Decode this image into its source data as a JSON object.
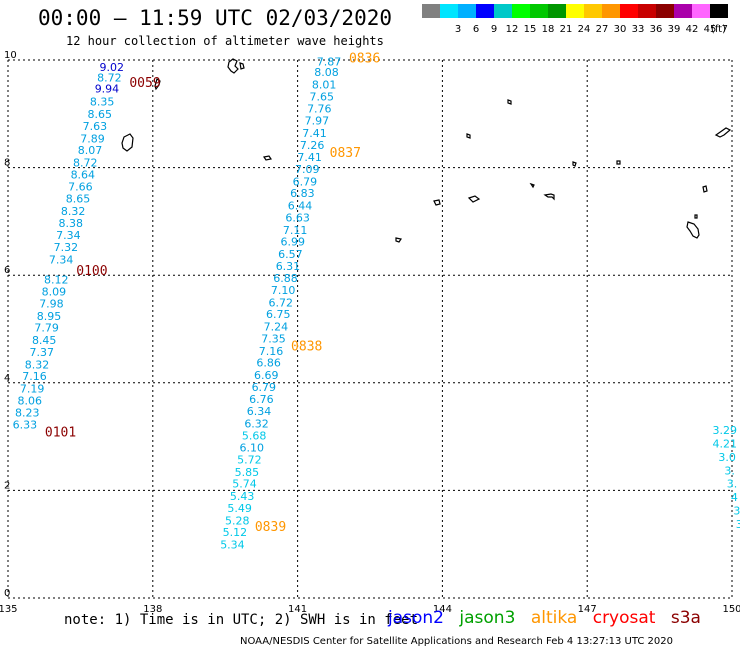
{
  "header": {
    "title": "00:00 – 11:59 UTC 02/03/2020",
    "subtitle": "12 hour collection of altimeter wave heights"
  },
  "legend": {
    "unit": "(ft)",
    "bins": [
      {
        "label": "",
        "color": "#808080"
      },
      {
        "label": "3",
        "color": "#00e5ff"
      },
      {
        "label": "6",
        "color": "#00b0ff"
      },
      {
        "label": "9",
        "color": "#0000ff"
      },
      {
        "label": "12",
        "color": "#00c8c8"
      },
      {
        "label": "15",
        "color": "#00ff00"
      },
      {
        "label": "18",
        "color": "#00c800"
      },
      {
        "label": "21",
        "color": "#009600"
      },
      {
        "label": "24",
        "color": "#ffff00"
      },
      {
        "label": "27",
        "color": "#ffc800"
      },
      {
        "label": "30",
        "color": "#ff9600"
      },
      {
        "label": "33",
        "color": "#ff0000"
      },
      {
        "label": "36",
        "color": "#c80000"
      },
      {
        "label": "39",
        "color": "#8b0000"
      },
      {
        "label": "42",
        "color": "#aa00aa"
      },
      {
        "label": "45",
        "color": "#ff66ff"
      },
      {
        "label": "70",
        "color": "#000000"
      }
    ]
  },
  "axes": {
    "lon_ticks": [
      "135",
      "138",
      "141",
      "144",
      "147",
      "150"
    ],
    "lat_ticks": [
      "0",
      "2",
      "4",
      "6",
      "8",
      "10"
    ]
  },
  "passes": [
    {
      "id": "p1",
      "time_labels": [
        {
          "text": "0059",
          "lat": 9.5
        },
        {
          "text": "0100",
          "lat": 6.0
        },
        {
          "text": "0101",
          "lat": 3.0
        }
      ],
      "time_color": "#8b0000",
      "points": [
        {
          "lat": 9.8,
          "lon": 137.15,
          "v": "9.02",
          "c": "#0000cc"
        },
        {
          "lat": 9.6,
          "lon": 137.1,
          "v": "8.72",
          "c": "#00a0e0"
        },
        {
          "lat": 9.4,
          "lon": 137.05,
          "v": "9.94",
          "c": "#0000cc"
        },
        {
          "lat": 9.15,
          "lon": 136.95,
          "v": "8.35",
          "c": "#00a0e0"
        },
        {
          "lat": 8.92,
          "lon": 136.9,
          "v": "8.65",
          "c": "#00a0e0"
        },
        {
          "lat": 8.7,
          "lon": 136.8,
          "v": "7.63",
          "c": "#00a0e0"
        },
        {
          "lat": 8.47,
          "lon": 136.75,
          "v": "7.89",
          "c": "#00a0e0"
        },
        {
          "lat": 8.25,
          "lon": 136.7,
          "v": "8.07",
          "c": "#00a0e0"
        },
        {
          "lat": 8.02,
          "lon": 136.6,
          "v": "8.72",
          "c": "#00a0e0"
        },
        {
          "lat": 7.8,
          "lon": 136.55,
          "v": "8.64",
          "c": "#00a0e0"
        },
        {
          "lat": 7.57,
          "lon": 136.5,
          "v": "7.66",
          "c": "#00a0e0"
        },
        {
          "lat": 7.35,
          "lon": 136.45,
          "v": "8.65",
          "c": "#00a0e0"
        },
        {
          "lat": 7.12,
          "lon": 136.35,
          "v": "8.32",
          "c": "#00a0e0"
        },
        {
          "lat": 6.9,
          "lon": 136.3,
          "v": "8.38",
          "c": "#00a0e0"
        },
        {
          "lat": 6.67,
          "lon": 136.25,
          "v": "7.34",
          "c": "#00a0e0"
        },
        {
          "lat": 6.45,
          "lon": 136.2,
          "v": "7.32",
          "c": "#00a0e0"
        },
        {
          "lat": 6.22,
          "lon": 136.1,
          "v": "7.34",
          "c": "#00a0e0"
        },
        {
          "lat": 5.85,
          "lon": 136.0,
          "v": "8.12",
          "c": "#00a0e0"
        },
        {
          "lat": 5.62,
          "lon": 135.95,
          "v": "8.09",
          "c": "#00a0e0"
        },
        {
          "lat": 5.4,
          "lon": 135.9,
          "v": "7.98",
          "c": "#00a0e0"
        },
        {
          "lat": 5.17,
          "lon": 135.85,
          "v": "8.95",
          "c": "#00a0e0"
        },
        {
          "lat": 4.95,
          "lon": 135.8,
          "v": "7.79",
          "c": "#00a0e0"
        },
        {
          "lat": 4.72,
          "lon": 135.75,
          "v": "8.45",
          "c": "#00a0e0"
        },
        {
          "lat": 4.5,
          "lon": 135.7,
          "v": "7.37",
          "c": "#00a0e0"
        },
        {
          "lat": 4.27,
          "lon": 135.6,
          "v": "8.32",
          "c": "#00a0e0"
        },
        {
          "lat": 4.05,
          "lon": 135.55,
          "v": "7.16",
          "c": "#00a0e0"
        },
        {
          "lat": 3.82,
          "lon": 135.5,
          "v": "7.19",
          "c": "#00a0e0"
        },
        {
          "lat": 3.6,
          "lon": 135.45,
          "v": "8.06",
          "c": "#00a0e0"
        },
        {
          "lat": 3.37,
          "lon": 135.4,
          "v": "8.23",
          "c": "#00a0e0"
        },
        {
          "lat": 3.15,
          "lon": 135.35,
          "v": "6.33",
          "c": "#00a0e0"
        }
      ]
    },
    {
      "id": "p2",
      "time_labels": [
        {
          "text": "0836",
          "lat": 9.95
        },
        {
          "text": "0837",
          "lat": 8.2
        },
        {
          "text": "0838",
          "lat": 4.6
        },
        {
          "text": "0839",
          "lat": 1.25
        }
      ],
      "time_color": "#ff9600",
      "points": [
        {
          "lat": 9.9,
          "lon": 141.65,
          "v": "7.87",
          "c": "#00a0e0"
        },
        {
          "lat": 9.7,
          "lon": 141.6,
          "v": "8.08",
          "c": "#00a0e0"
        },
        {
          "lat": 9.47,
          "lon": 141.55,
          "v": "8.01",
          "c": "#00a0e0"
        },
        {
          "lat": 9.25,
          "lon": 141.5,
          "v": "7.65",
          "c": "#00a0e0"
        },
        {
          "lat": 9.02,
          "lon": 141.45,
          "v": "7.76",
          "c": "#00a0e0"
        },
        {
          "lat": 8.8,
          "lon": 141.4,
          "v": "7.97",
          "c": "#00a0e0"
        },
        {
          "lat": 8.57,
          "lon": 141.35,
          "v": "7.41",
          "c": "#00a0e0"
        },
        {
          "lat": 8.35,
          "lon": 141.3,
          "v": "7.26",
          "c": "#00a0e0"
        },
        {
          "lat": 8.12,
          "lon": 141.25,
          "v": "7.41",
          "c": "#00a0e0"
        },
        {
          "lat": 7.9,
          "lon": 141.2,
          "v": "7.09",
          "c": "#00a0e0"
        },
        {
          "lat": 7.67,
          "lon": 141.15,
          "v": "6.79",
          "c": "#00a0e0"
        },
        {
          "lat": 7.45,
          "lon": 141.1,
          "v": "6.83",
          "c": "#00a0e0"
        },
        {
          "lat": 7.22,
          "lon": 141.05,
          "v": "6.44",
          "c": "#00a0e0"
        },
        {
          "lat": 7.0,
          "lon": 141.0,
          "v": "6.63",
          "c": "#00a0e0"
        },
        {
          "lat": 6.77,
          "lon": 140.95,
          "v": "7.11",
          "c": "#00a0e0"
        },
        {
          "lat": 6.55,
          "lon": 140.9,
          "v": "6.99",
          "c": "#00a0e0"
        },
        {
          "lat": 6.32,
          "lon": 140.85,
          "v": "6.57",
          "c": "#00a0e0"
        },
        {
          "lat": 6.1,
          "lon": 140.8,
          "v": "6.31",
          "c": "#00a0e0"
        },
        {
          "lat": 5.87,
          "lon": 140.75,
          "v": "6.88",
          "c": "#00a0e0"
        },
        {
          "lat": 5.65,
          "lon": 140.7,
          "v": "7.10",
          "c": "#00a0e0"
        },
        {
          "lat": 5.42,
          "lon": 140.65,
          "v": "6.72",
          "c": "#00a0e0"
        },
        {
          "lat": 5.2,
          "lon": 140.6,
          "v": "6.75",
          "c": "#00a0e0"
        },
        {
          "lat": 4.97,
          "lon": 140.55,
          "v": "7.24",
          "c": "#00a0e0"
        },
        {
          "lat": 4.75,
          "lon": 140.5,
          "v": "7.35",
          "c": "#00a0e0"
        },
        {
          "lat": 4.52,
          "lon": 140.45,
          "v": "7.16",
          "c": "#00a0e0"
        },
        {
          "lat": 4.3,
          "lon": 140.4,
          "v": "6.86",
          "c": "#00a0e0"
        },
        {
          "lat": 4.07,
          "lon": 140.35,
          "v": "6.69",
          "c": "#00a0e0"
        },
        {
          "lat": 3.85,
          "lon": 140.3,
          "v": "6.79",
          "c": "#00a0e0"
        },
        {
          "lat": 3.62,
          "lon": 140.25,
          "v": "6.76",
          "c": "#00a0e0"
        },
        {
          "lat": 3.4,
          "lon": 140.2,
          "v": "6.34",
          "c": "#00a0e0"
        },
        {
          "lat": 3.17,
          "lon": 140.15,
          "v": "6.32",
          "c": "#00a0e0"
        },
        {
          "lat": 2.95,
          "lon": 140.1,
          "v": "5.68",
          "c": "#00c8e8"
        },
        {
          "lat": 2.72,
          "lon": 140.05,
          "v": "6.10",
          "c": "#00a0e0"
        },
        {
          "lat": 2.5,
          "lon": 140.0,
          "v": "5.72",
          "c": "#00c8e8"
        },
        {
          "lat": 2.27,
          "lon": 139.95,
          "v": "5.85",
          "c": "#00c8e8"
        },
        {
          "lat": 2.05,
          "lon": 139.9,
          "v": "5.74",
          "c": "#00c8e8"
        },
        {
          "lat": 1.82,
          "lon": 139.85,
          "v": "5.43",
          "c": "#00c8e8"
        },
        {
          "lat": 1.6,
          "lon": 139.8,
          "v": "5.49",
          "c": "#00c8e8"
        },
        {
          "lat": 1.37,
          "lon": 139.75,
          "v": "5.28",
          "c": "#00c8e8"
        },
        {
          "lat": 1.15,
          "lon": 139.7,
          "v": "5.12",
          "c": "#00c8e8"
        },
        {
          "lat": 0.92,
          "lon": 139.65,
          "v": "5.34",
          "c": "#00c8e8"
        }
      ]
    },
    {
      "id": "p3",
      "time_labels": [],
      "time_color": "#ff9600",
      "points": [
        {
          "lat": 3.05,
          "lon": 149.85,
          "v": "3.29",
          "c": "#00c8e8"
        },
        {
          "lat": 2.8,
          "lon": 149.85,
          "v": "4.21",
          "c": "#00c8e8"
        },
        {
          "lat": 2.55,
          "lon": 149.9,
          "v": "3.0",
          "c": "#00c8e8"
        },
        {
          "lat": 2.3,
          "lon": 149.95,
          "v": "3.",
          "c": "#00c8e8"
        },
        {
          "lat": 2.05,
          "lon": 150.0,
          "v": "3.",
          "c": "#00c8e8"
        },
        {
          "lat": 1.8,
          "lon": 150.05,
          "v": "4",
          "c": "#00c8e8"
        },
        {
          "lat": 1.55,
          "lon": 150.1,
          "v": "3",
          "c": "#00c8e8"
        },
        {
          "lat": 1.3,
          "lon": 150.15,
          "v": "3",
          "c": "#00c8e8"
        }
      ]
    }
  ],
  "footer": {
    "note": "note: 1) Time is in UTC; 2) SWH is in feet",
    "credit": "NOAA/NESDIS Center for Satellite Applications and Research   Feb  4 13:27:13 UTC 2020",
    "satellites": [
      {
        "name": "jason2",
        "color": "#0000ff"
      },
      {
        "name": "jason3",
        "color": "#00a000"
      },
      {
        "name": "altika",
        "color": "#ff9600"
      },
      {
        "name": "cryosat",
        "color": "#ff0000"
      },
      {
        "name": "s3a",
        "color": "#8b0000"
      }
    ]
  }
}
